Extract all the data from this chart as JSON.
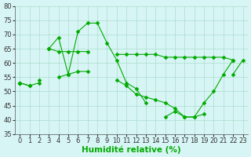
{
  "x": [
    0,
    1,
    2,
    3,
    4,
    5,
    6,
    7,
    8,
    9,
    10,
    11,
    12,
    13,
    14,
    15,
    16,
    17,
    18,
    19,
    20,
    21,
    22,
    23
  ],
  "s1": [
    53,
    52,
    null,
    65,
    69,
    56,
    71,
    74,
    74,
    67,
    61,
    53,
    51,
    46,
    null,
    41,
    43,
    41,
    41,
    42,
    null,
    null,
    56,
    61
  ],
  "s2": [
    53,
    null,
    null,
    65,
    64,
    64,
    64,
    64,
    null,
    null,
    63,
    63,
    63,
    63,
    63,
    62,
    62,
    62,
    62,
    62,
    62,
    62,
    61,
    null
  ],
  "s3": [
    53,
    null,
    54,
    null,
    55,
    56,
    57,
    57,
    null,
    null,
    54,
    52,
    49,
    48,
    47,
    46,
    44,
    41,
    41,
    46,
    50,
    56,
    61,
    null
  ],
  "s4": [
    53,
    52,
    53,
    null,
    null,
    null,
    null,
    null,
    null,
    null,
    null,
    null,
    null,
    null,
    null,
    null,
    null,
    null,
    null,
    null,
    null,
    null,
    null,
    null
  ],
  "line_color": "#00aa00",
  "marker": "D",
  "markersize": 2.5,
  "bg_color": "#d8f5f5",
  "grid_color": "#aaddcc",
  "xlabel": "Humidité relative (%)",
  "xlabel_fontsize": 7.5,
  "tick_fontsize": 6,
  "ylim": [
    35,
    80
  ],
  "xlim": [
    -0.5,
    23.5
  ],
  "yticks": [
    35,
    40,
    45,
    50,
    55,
    60,
    65,
    70,
    75,
    80
  ],
  "xticks": [
    0,
    1,
    2,
    3,
    4,
    5,
    6,
    7,
    8,
    9,
    10,
    11,
    12,
    13,
    14,
    15,
    16,
    17,
    18,
    19,
    20,
    21,
    22,
    23
  ]
}
